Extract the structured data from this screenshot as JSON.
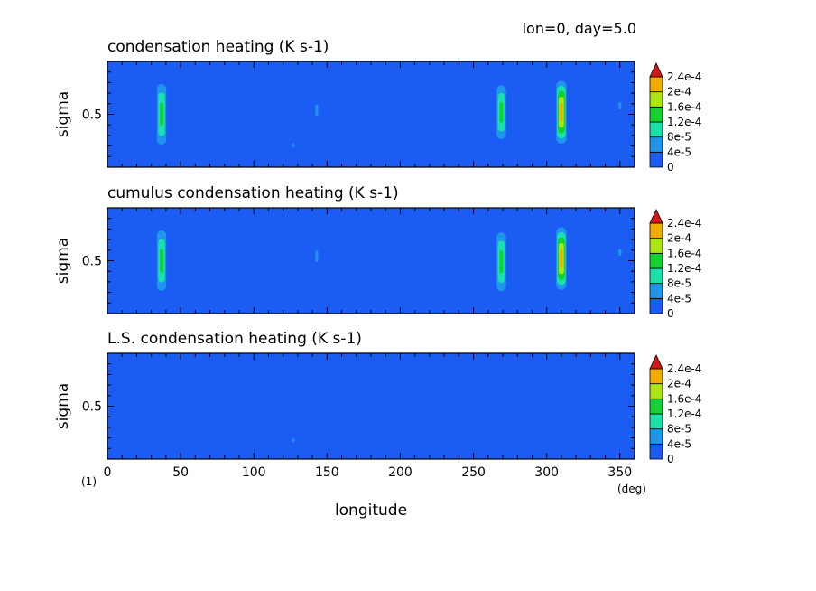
{
  "header_label": "lon=0, day=5.0",
  "footnote": "(1)",
  "x_unit": "(deg)",
  "xlabel": "longitude",
  "ylabel": "sigma",
  "colorbar": {
    "labels": [
      "0",
      "4e-5",
      "8e-5",
      "1.2e-4",
      "1.6e-4",
      "2e-4",
      "2.4e-4"
    ],
    "colors": [
      "#1b5cf2",
      "#1f95ec",
      "#19e1aa",
      "#14d22e",
      "#aee614",
      "#f0ac00",
      "#d11818"
    ]
  },
  "chart_data": [
    {
      "type": "heatmap",
      "title": "condensation heating (K s-1)",
      "xlabel": "longitude",
      "ylabel": "sigma",
      "xlim": [
        0,
        360
      ],
      "x_ticks": [
        0,
        50,
        100,
        150,
        200,
        250,
        300,
        350
      ],
      "y_ticks": [
        0.5
      ],
      "levels": [
        0,
        4e-05,
        8e-05,
        0.00012,
        0.00016,
        0.0002,
        0.00024
      ],
      "features": [
        {
          "lon": 37,
          "sigma_top": 0.86,
          "sigma_bottom": 0.14,
          "peak": 0.00014
        },
        {
          "lon": 143,
          "sigma_top": 0.84,
          "sigma_bottom": 0.24,
          "peak": 4e-05
        },
        {
          "lon": 127,
          "sigma_top": 0.25,
          "sigma_bottom": 0.16,
          "peak": 4e-05
        },
        {
          "lon": 269,
          "sigma_top": 0.84,
          "sigma_bottom": 0.2,
          "peak": 0.00014
        },
        {
          "lon": 310,
          "sigma_top": 0.86,
          "sigma_bottom": 0.18,
          "peak": 0.00022
        },
        {
          "lon": 350,
          "sigma_top": 0.76,
          "sigma_bottom": 0.4,
          "peak": 4e-05
        }
      ]
    },
    {
      "type": "heatmap",
      "title": "cumulus condensation heating (K s-1)",
      "xlabel": "longitude",
      "ylabel": "sigma",
      "xlim": [
        0,
        360
      ],
      "x_ticks": [
        0,
        50,
        100,
        150,
        200,
        250,
        300,
        350
      ],
      "y_ticks": [
        0.5
      ],
      "levels": [
        0,
        4e-05,
        8e-05,
        0.00012,
        0.00016,
        0.0002,
        0.00024
      ],
      "features": [
        {
          "lon": 37,
          "sigma_top": 0.86,
          "sigma_bottom": 0.14,
          "peak": 0.00014
        },
        {
          "lon": 143,
          "sigma_top": 0.84,
          "sigma_bottom": 0.24,
          "peak": 4e-05
        },
        {
          "lon": 269,
          "sigma_top": 0.84,
          "sigma_bottom": 0.14,
          "peak": 0.00014
        },
        {
          "lon": 310,
          "sigma_top": 0.86,
          "sigma_bottom": 0.18,
          "peak": 0.00022
        },
        {
          "lon": 350,
          "sigma_top": 0.76,
          "sigma_bottom": 0.4,
          "peak": 4e-05
        }
      ]
    },
    {
      "type": "heatmap",
      "title": "L.S. condensation heating (K s-1)",
      "xlabel": "longitude",
      "ylabel": "sigma",
      "xlim": [
        0,
        360
      ],
      "x_ticks": [
        0,
        50,
        100,
        150,
        200,
        250,
        300,
        350
      ],
      "y_ticks": [
        0.5
      ],
      "levels": [
        0,
        4e-05,
        8e-05,
        0.00012,
        0.00016,
        0.0002,
        0.00024
      ],
      "features": [
        {
          "lon": 127,
          "sigma_top": 0.22,
          "sigma_bottom": 0.14,
          "peak": 4e-05
        }
      ]
    }
  ]
}
